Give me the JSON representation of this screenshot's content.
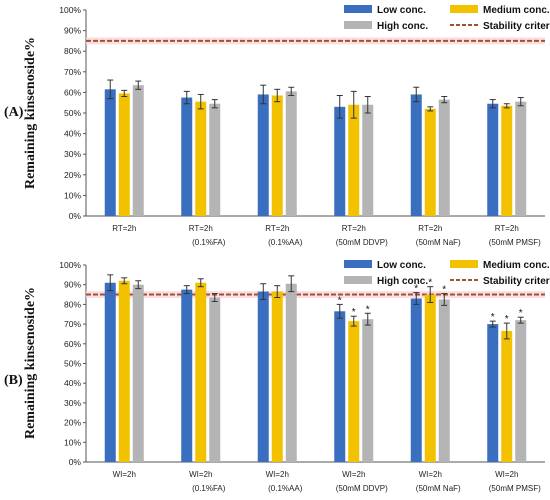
{
  "chart_data": [
    {
      "type": "bar",
      "panel_label": "(A)",
      "ylabel": "Remaining kinsenoside%",
      "ylim": [
        0,
        100
      ],
      "yticks": [
        "0%",
        "10%",
        "20%",
        "30%",
        "40%",
        "50%",
        "60%",
        "70%",
        "80%",
        "90%",
        "100%"
      ],
      "categories": [
        [
          "RT=2h",
          ""
        ],
        [
          "RT=2h",
          "(0.1%FA)"
        ],
        [
          "RT=2h",
          "(0.1%AA)"
        ],
        [
          "RT=2h",
          "(50mM  DDVP)"
        ],
        [
          "RT=2h",
          "(50mM  NaF)"
        ],
        [
          "RT=2h",
          "(50mM  PMSF)"
        ]
      ],
      "series": [
        {
          "name": "Low conc.",
          "color": "#3a6ebf",
          "values": [
            61.5,
            57.5,
            59,
            53,
            59,
            54.5
          ],
          "errors": [
            4.5,
            3,
            4.5,
            5.5,
            3.5,
            2
          ],
          "marks": [
            "",
            "",
            "",
            "",
            "",
            ""
          ]
        },
        {
          "name": "Medium conc.",
          "color": "#f2c200",
          "values": [
            59.5,
            55.5,
            58.5,
            54,
            52,
            53.5
          ],
          "errors": [
            1.5,
            3.5,
            3,
            6.5,
            1,
            1
          ],
          "marks": [
            "",
            "",
            "",
            "",
            "",
            ""
          ]
        },
        {
          "name": "High conc.",
          "color": "#b4b4b4",
          "values": [
            63.5,
            54.5,
            60.5,
            54,
            56.5,
            55.5
          ],
          "errors": [
            2,
            2,
            2,
            4,
            1.5,
            2
          ],
          "marks": [
            "",
            "",
            "",
            "",
            "",
            ""
          ]
        }
      ],
      "criterion": {
        "name": "Stability criterion",
        "value": 85,
        "color": "#a0522d"
      },
      "legend_position": "top-right",
      "grid": false
    },
    {
      "type": "bar",
      "panel_label": "(B)",
      "ylabel": "Remaining kinsenoside%",
      "ylim": [
        0,
        100
      ],
      "yticks": [
        "0%",
        "10%",
        "20%",
        "30%",
        "40%",
        "50%",
        "60%",
        "70%",
        "80%",
        "90%",
        "100%"
      ],
      "categories": [
        [
          "WI=2h",
          ""
        ],
        [
          "WI=2h",
          "(0.1%FA)"
        ],
        [
          "WI=2h",
          "(0.1%AA)"
        ],
        [
          "WI=2h",
          "(50mM  DDVP)"
        ],
        [
          "WI=2h",
          "(50mM  NaF)"
        ],
        [
          "WI=2h",
          "(50mM  PMSF)"
        ]
      ],
      "series": [
        {
          "name": "Low conc.",
          "color": "#3a6ebf",
          "values": [
            91,
            87.5,
            86.5,
            76.5,
            83,
            70
          ],
          "errors": [
            4,
            2,
            4,
            3.5,
            3,
            1.5
          ],
          "marks": [
            "",
            "",
            "",
            "*",
            "*",
            "*"
          ]
        },
        {
          "name": "Medium conc.",
          "color": "#f2c200",
          "values": [
            92,
            91,
            86.5,
            71.5,
            85,
            66.5
          ],
          "errors": [
            1.5,
            2,
            3,
            2.5,
            4,
            4
          ],
          "marks": [
            "",
            "",
            "",
            "*",
            "*",
            "*"
          ]
        },
        {
          "name": "High conc.",
          "color": "#b4b4b4",
          "values": [
            90,
            83.5,
            90.5,
            72.5,
            82.5,
            72
          ],
          "errors": [
            2,
            2,
            4,
            3,
            3,
            1.5
          ],
          "marks": [
            "",
            "",
            "",
            "*",
            "*",
            "*"
          ]
        }
      ],
      "criterion": {
        "name": "Stability criterion",
        "value": 85,
        "color": "#a0522d"
      },
      "legend_position": "top-right",
      "grid": false
    }
  ]
}
